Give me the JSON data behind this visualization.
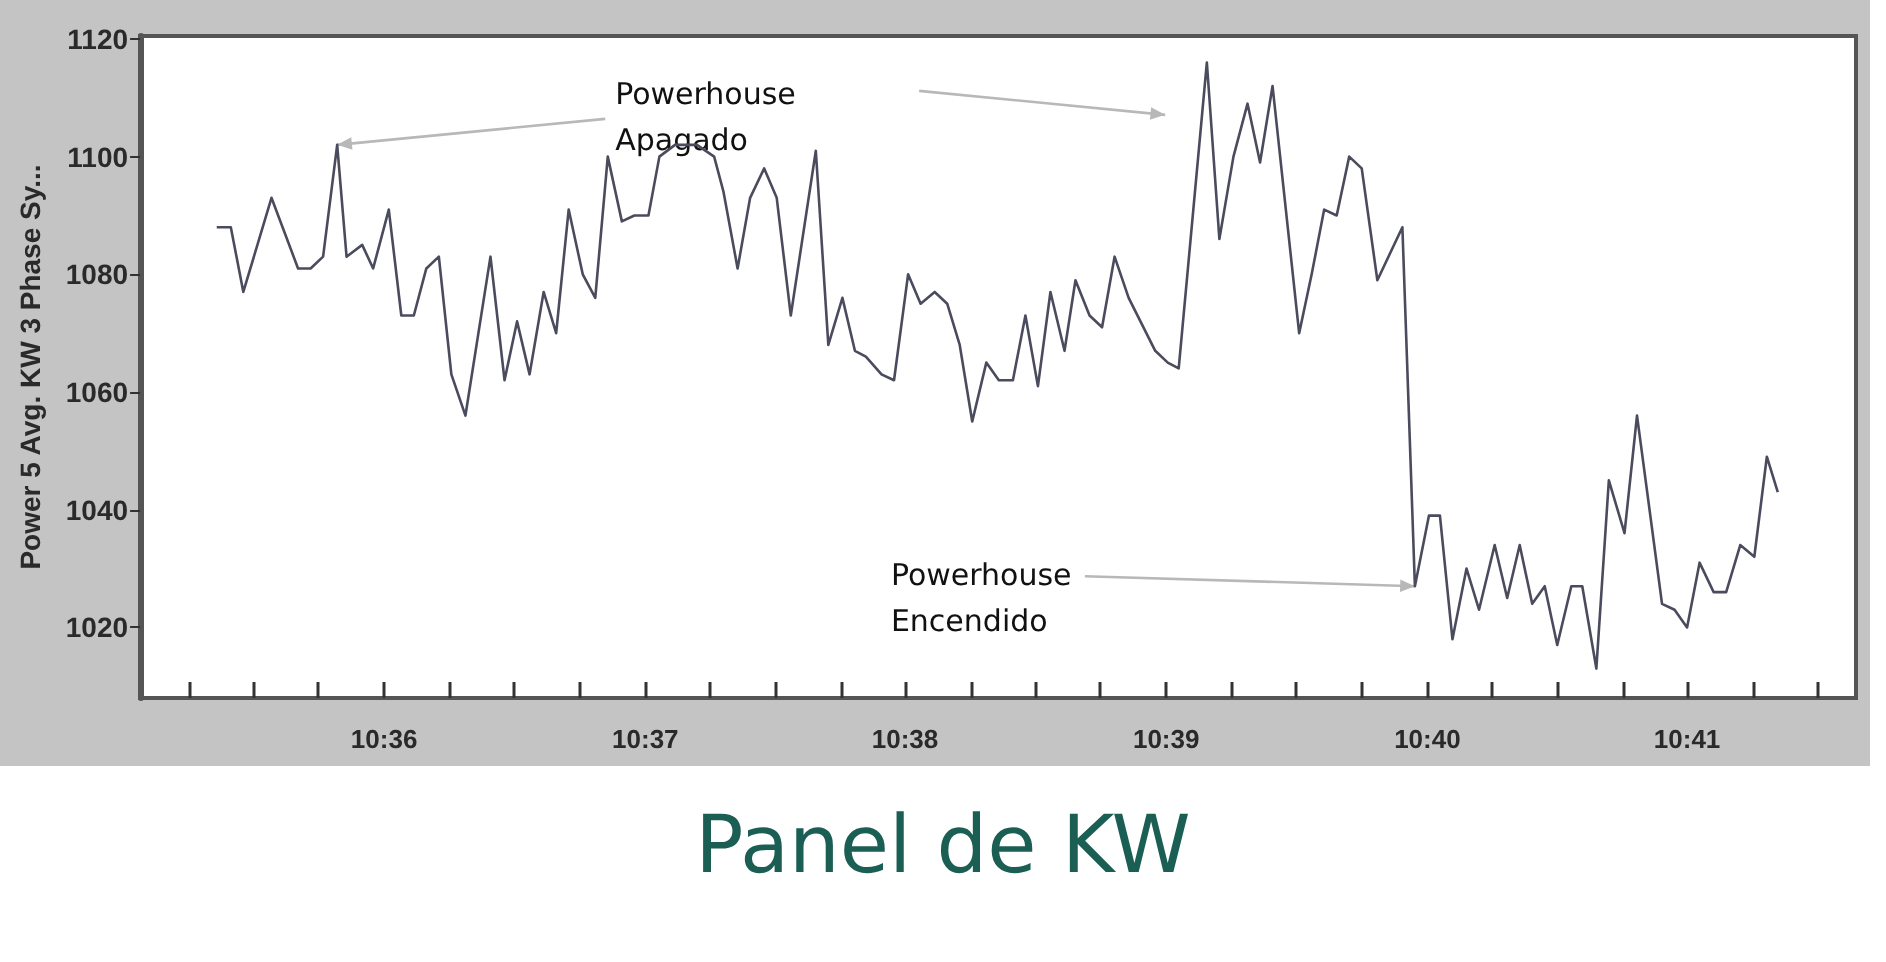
{
  "chart_data": {
    "type": "line",
    "title": "Panel de KW",
    "ylabel": "Power 5 Avg. KW 3 Phase Sy...",
    "x": [
      10.5893,
      10.5902,
      10.591,
      10.5928,
      10.5945,
      10.5953,
      10.5961,
      10.597,
      10.5976,
      10.5986,
      10.5993,
      10.6003,
      10.6011,
      10.6019,
      10.6027,
      10.6035,
      10.6043,
      10.6052,
      10.6068,
      10.6077,
      10.6085,
      10.6093,
      10.6102,
      10.611,
      10.6118,
      10.6127,
      10.6135,
      10.6143,
      10.6152,
      10.616,
      10.6169,
      10.6176,
      10.6186,
      10.62,
      10.6211,
      10.6217,
      10.6226,
      10.6234,
      10.6243,
      10.6251,
      10.626,
      10.6276,
      10.6284,
      10.6293,
      10.6301,
      10.6308,
      10.6318,
      10.6326,
      10.6335,
      10.6343,
      10.6352,
      10.636,
      10.6368,
      10.6376,
      10.6385,
      10.6393,
      10.6402,
      10.641,
      10.6418,
      10.6426,
      10.6435,
      10.6442,
      10.6451,
      10.6459,
      10.6467,
      10.6476,
      10.6493,
      10.6501,
      10.6508,
      10.6526,
      10.6534,
      10.6543,
      10.6552,
      10.656,
      10.6568,
      10.6585,
      10.6593,
      10.6601,
      10.6609,
      10.6617,
      10.6625,
      10.6635,
      10.6651,
      10.6659,
      10.6668,
      10.6675,
      10.6683,
      10.6692,
      10.67,
      10.671,
      10.6718,
      10.6726,
      10.6734,
      10.6742,
      10.675,
      10.6759,
      10.6766,
      10.6775,
      10.6783,
      10.6793,
      10.6801,
      10.6817,
      10.6825,
      10.6833,
      10.6841,
      10.685,
      10.6858,
      10.6867,
      10.6876,
      10.6884,
      10.6891
    ],
    "values": [
      1088,
      1088,
      1077,
      1093,
      1081,
      1081,
      1083,
      1102,
      1083,
      1085,
      1081,
      1091,
      1073,
      1073,
      1081,
      1083,
      1063,
      1056,
      1083,
      1062,
      1072,
      1063,
      1077,
      1070,
      1091,
      1080,
      1076,
      1100,
      1089,
      1090,
      1090,
      1100,
      1102,
      1102,
      1100,
      1094,
      1081,
      1093,
      1098,
      1093,
      1073,
      1101,
      1068,
      1076,
      1067,
      1066,
      1063,
      1062,
      1080,
      1075,
      1077,
      1075,
      1068,
      1055,
      1065,
      1062,
      1062,
      1073,
      1061,
      1077,
      1067,
      1079,
      1073,
      1071,
      1083,
      1076,
      1067,
      1065,
      1064,
      1116,
      1086,
      1100,
      1109,
      1099,
      1112,
      1070,
      1080,
      1091,
      1090,
      1100,
      1098,
      1079,
      1088,
      1027,
      1039,
      1039,
      1018,
      1030,
      1023,
      1034,
      1025,
      1034,
      1024,
      1027,
      1017,
      1027,
      1027,
      1013,
      1045,
      1036,
      1056,
      1024,
      1023,
      1020,
      1031,
      1026,
      1026,
      1034,
      1032,
      1049,
      1043
    ],
    "color": "#4b4b5e",
    "xlim": [
      10.5844,
      10.6941
    ],
    "ylim": [
      1008,
      1120.5
    ],
    "xticks": [
      {
        "value": 10.5875,
        "label": null
      },
      {
        "value": 10.5917,
        "label": null
      },
      {
        "value": 10.5958,
        "label": null
      },
      {
        "value": 10.6,
        "label": "10:36"
      },
      {
        "value": 10.6042,
        "label": null
      },
      {
        "value": 10.6083,
        "label": null
      },
      {
        "value": 10.6125,
        "label": null
      },
      {
        "value": 10.6167,
        "label": "10:37"
      },
      {
        "value": 10.6208,
        "label": null
      },
      {
        "value": 10.625,
        "label": null
      },
      {
        "value": 10.6292,
        "label": null
      },
      {
        "value": 10.6333,
        "label": "10:38"
      },
      {
        "value": 10.6375,
        "label": null
      },
      {
        "value": 10.6417,
        "label": null
      },
      {
        "value": 10.6458,
        "label": null
      },
      {
        "value": 10.65,
        "label": "10:39"
      },
      {
        "value": 10.6542,
        "label": null
      },
      {
        "value": 10.6583,
        "label": null
      },
      {
        "value": 10.6625,
        "label": null
      },
      {
        "value": 10.6667,
        "label": "10:40"
      },
      {
        "value": 10.6708,
        "label": null
      },
      {
        "value": 10.675,
        "label": null
      },
      {
        "value": 10.6792,
        "label": null
      },
      {
        "value": 10.6833,
        "label": "10:41"
      },
      {
        "value": 10.6875,
        "label": null
      },
      {
        "value": 10.6917,
        "label": null
      }
    ],
    "yticks": [
      1020,
      1040,
      1060,
      1080,
      1100,
      1120
    ],
    "annotations": [
      {
        "text": "Powerhouse Apagado",
        "x": 10.597,
        "y": 1102
      },
      {
        "text": "Powerhouse Encendido",
        "x": 10.6659,
        "y": 1027
      }
    ]
  }
}
